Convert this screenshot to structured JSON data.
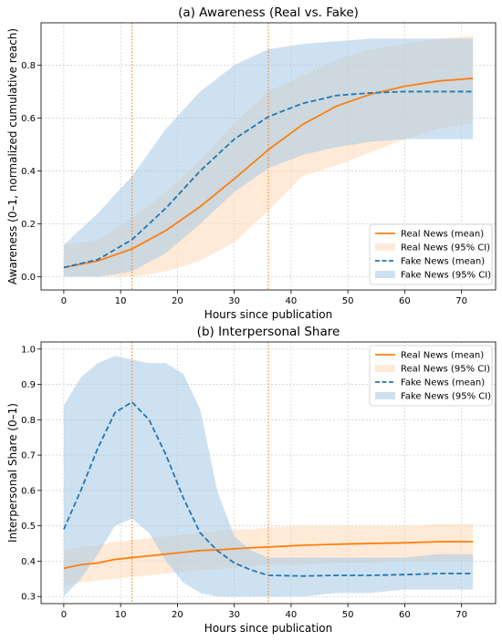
{
  "colors": {
    "real": "#ff7f0e",
    "fake": "#1f77b4",
    "real_band": "#ffd9b8",
    "fake_band": "#a6c8e6",
    "vline": "#ff7f0e",
    "grid": "#d0d0d0"
  },
  "chart_data": [
    {
      "type": "line",
      "title": "(a) Awareness (Real vs. Fake)",
      "xlabel": "Hours since publication",
      "ylabel": "Awareness (0–1, normalized cumulative reach)",
      "xlim": [
        -4,
        76
      ],
      "ylim": [
        -0.05,
        0.96
      ],
      "xticks": [
        0,
        10,
        20,
        30,
        40,
        50,
        60,
        70
      ],
      "yticks": [
        0.0,
        0.2,
        0.4,
        0.6,
        0.8
      ],
      "grid": true,
      "legend_position": "lower right",
      "vlines": [
        12,
        36
      ],
      "x": [
        0,
        6,
        12,
        18,
        24,
        30,
        36,
        42,
        48,
        54,
        60,
        66,
        72
      ],
      "series": [
        {
          "name": "Real News (mean)",
          "kind": "mean",
          "color_key": "real",
          "dash": false,
          "values": [
            0.035,
            0.06,
            0.105,
            0.175,
            0.265,
            0.37,
            0.48,
            0.575,
            0.645,
            0.69,
            0.72,
            0.74,
            0.75
          ]
        },
        {
          "name": "Real News (95% CI)",
          "kind": "band",
          "color_key": "real_band",
          "lower": [
            0.0,
            0.0,
            0.0,
            0.02,
            0.06,
            0.13,
            0.25,
            0.38,
            0.42,
            0.47,
            0.52,
            0.56,
            0.58
          ],
          "upper": [
            0.12,
            0.14,
            0.22,
            0.32,
            0.44,
            0.58,
            0.7,
            0.76,
            0.82,
            0.86,
            0.88,
            0.9,
            0.91
          ]
        },
        {
          "name": "Fake News (mean)",
          "kind": "mean",
          "color_key": "fake",
          "dash": true,
          "values": [
            0.035,
            0.065,
            0.14,
            0.26,
            0.4,
            0.52,
            0.605,
            0.655,
            0.685,
            0.695,
            0.7,
            0.7,
            0.7
          ]
        },
        {
          "name": "Fake News (95% CI)",
          "kind": "band",
          "color_key": "fake_band",
          "lower": [
            0.0,
            0.0,
            0.02,
            0.09,
            0.2,
            0.32,
            0.41,
            0.46,
            0.49,
            0.51,
            0.52,
            0.52,
            0.52
          ],
          "upper": [
            0.12,
            0.24,
            0.38,
            0.56,
            0.7,
            0.8,
            0.86,
            0.88,
            0.89,
            0.9,
            0.9,
            0.9,
            0.9
          ]
        }
      ]
    },
    {
      "type": "line",
      "title": "(b) Interpersonal Share",
      "xlabel": "Hours since publication",
      "ylabel": "Interpersonal Share (0–1)",
      "xlim": [
        -4,
        76
      ],
      "ylim": [
        0.28,
        1.02
      ],
      "xticks": [
        0,
        10,
        20,
        30,
        40,
        50,
        60,
        70
      ],
      "yticks": [
        0.3,
        0.4,
        0.5,
        0.6,
        0.7,
        0.8,
        0.9,
        1.0
      ],
      "grid": true,
      "legend_position": "upper right",
      "vlines": [
        12,
        36
      ],
      "x": [
        0,
        3,
        6,
        9,
        12,
        15,
        18,
        21,
        24,
        27,
        30,
        33,
        36,
        42,
        48,
        54,
        60,
        66,
        72
      ],
      "series": [
        {
          "name": "Real News (mean)",
          "kind": "mean",
          "color_key": "real",
          "dash": false,
          "values": [
            0.38,
            0.39,
            0.395,
            0.405,
            0.41,
            0.415,
            0.42,
            0.425,
            0.43,
            0.432,
            0.435,
            0.438,
            0.44,
            0.445,
            0.448,
            0.45,
            0.452,
            0.455,
            0.455
          ]
        },
        {
          "name": "Real News (95% CI)",
          "kind": "band",
          "color_key": "real_band",
          "lower": [
            0.33,
            0.34,
            0.345,
            0.35,
            0.355,
            0.36,
            0.365,
            0.37,
            0.375,
            0.378,
            0.38,
            0.385,
            0.39,
            0.39,
            0.395,
            0.395,
            0.4,
            0.4,
            0.4
          ],
          "upper": [
            0.43,
            0.44,
            0.445,
            0.455,
            0.46,
            0.465,
            0.47,
            0.475,
            0.48,
            0.485,
            0.49,
            0.49,
            0.495,
            0.5,
            0.5,
            0.5,
            0.5,
            0.505,
            0.505
          ]
        },
        {
          "name": "Fake News (mean)",
          "kind": "mean",
          "color_key": "fake",
          "dash": true,
          "values": [
            0.49,
            0.6,
            0.72,
            0.82,
            0.85,
            0.8,
            0.7,
            0.58,
            0.48,
            0.43,
            0.395,
            0.375,
            0.36,
            0.358,
            0.36,
            0.36,
            0.362,
            0.365,
            0.365
          ]
        },
        {
          "name": "Fake News (95% CI)",
          "kind": "band",
          "color_key": "fake_band",
          "lower": [
            0.3,
            0.35,
            0.42,
            0.5,
            0.52,
            0.48,
            0.4,
            0.34,
            0.31,
            0.3,
            0.3,
            0.3,
            0.3,
            0.3,
            0.31,
            0.31,
            0.32,
            0.32,
            0.32
          ],
          "upper": [
            0.84,
            0.92,
            0.96,
            0.98,
            0.97,
            0.96,
            0.96,
            0.93,
            0.83,
            0.6,
            0.47,
            0.43,
            0.41,
            0.41,
            0.41,
            0.41,
            0.41,
            0.42,
            0.42
          ]
        }
      ]
    }
  ]
}
